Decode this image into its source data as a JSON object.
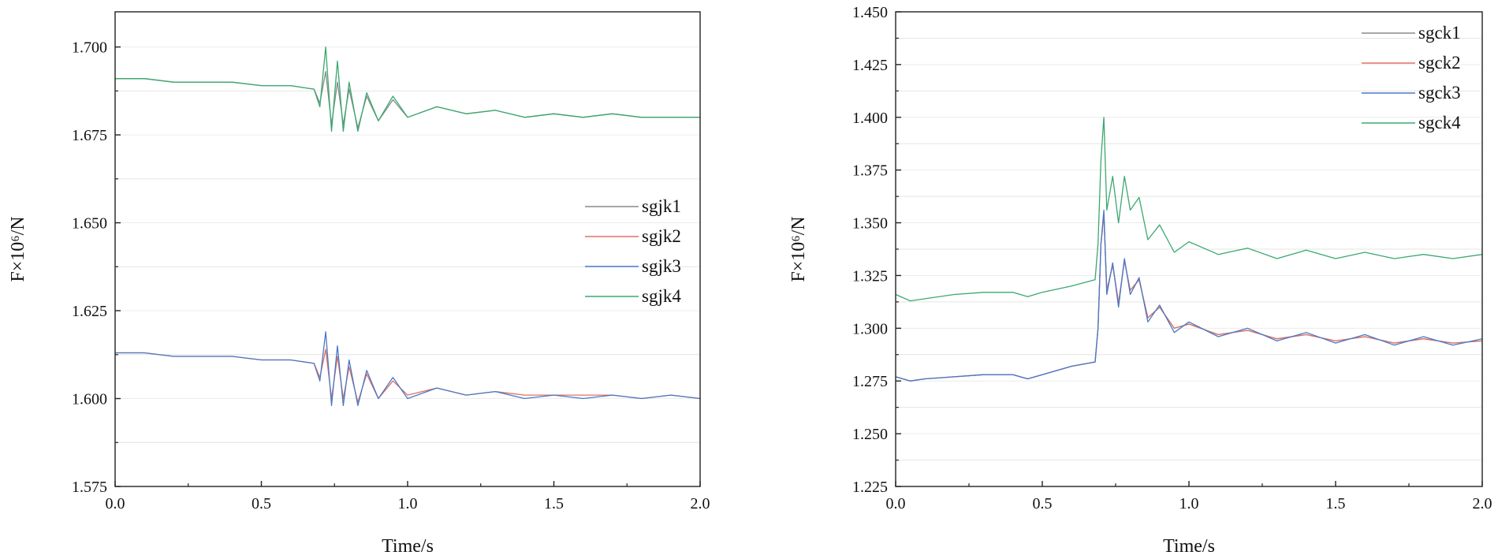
{
  "chart_data": [
    {
      "type": "line",
      "xlabel": "Time/s",
      "ylabel": "F×10⁶/N",
      "xlim": [
        0.0,
        2.0
      ],
      "ylim": [
        1.575,
        1.71
      ],
      "xticks": [
        "0.0",
        "0.5",
        "1.0",
        "1.5",
        "2.0"
      ],
      "yticks": [
        "1.575",
        "1.600",
        "1.625",
        "1.650",
        "1.675",
        "1.700"
      ],
      "grid": "horizontal, light",
      "legend_position": "center-right",
      "series": [
        {
          "name": "sgjk1",
          "color": "#8a8a8a",
          "x": [
            0.0,
            0.1,
            0.2,
            0.3,
            0.4,
            0.5,
            0.6,
            0.68,
            0.7,
            0.72,
            0.74,
            0.76,
            0.78,
            0.8,
            0.83,
            0.86,
            0.9,
            0.95,
            1.0,
            1.1,
            1.2,
            1.3,
            1.4,
            1.5,
            1.6,
            1.7,
            1.8,
            1.9,
            2.0
          ],
          "y": [
            1.691,
            1.691,
            1.69,
            1.69,
            1.69,
            1.689,
            1.689,
            1.688,
            1.684,
            1.693,
            1.678,
            1.69,
            1.678,
            1.688,
            1.677,
            1.686,
            1.679,
            1.685,
            1.68,
            1.683,
            1.681,
            1.682,
            1.68,
            1.681,
            1.68,
            1.681,
            1.68,
            1.68,
            1.68
          ]
        },
        {
          "name": "sgjk2",
          "color": "#e07060",
          "x": [
            0.0,
            0.1,
            0.2,
            0.3,
            0.4,
            0.5,
            0.6,
            0.68,
            0.7,
            0.72,
            0.74,
            0.76,
            0.78,
            0.8,
            0.83,
            0.86,
            0.9,
            0.95,
            1.0,
            1.1,
            1.2,
            1.3,
            1.4,
            1.5,
            1.6,
            1.7,
            1.8,
            1.9,
            2.0
          ],
          "y": [
            1.613,
            1.613,
            1.612,
            1.612,
            1.612,
            1.611,
            1.611,
            1.61,
            1.606,
            1.614,
            1.6,
            1.612,
            1.6,
            1.609,
            1.599,
            1.607,
            1.6,
            1.605,
            1.601,
            1.603,
            1.601,
            1.602,
            1.601,
            1.601,
            1.601,
            1.601,
            1.6,
            1.601,
            1.6
          ]
        },
        {
          "name": "sgjk3",
          "color": "#4a78c8",
          "x": [
            0.0,
            0.1,
            0.2,
            0.3,
            0.4,
            0.5,
            0.6,
            0.68,
            0.7,
            0.72,
            0.74,
            0.76,
            0.78,
            0.8,
            0.83,
            0.86,
            0.9,
            0.95,
            1.0,
            1.1,
            1.2,
            1.3,
            1.4,
            1.5,
            1.6,
            1.7,
            1.8,
            1.9,
            2.0
          ],
          "y": [
            1.613,
            1.613,
            1.612,
            1.612,
            1.612,
            1.611,
            1.611,
            1.61,
            1.605,
            1.619,
            1.598,
            1.615,
            1.598,
            1.611,
            1.598,
            1.608,
            1.6,
            1.606,
            1.6,
            1.603,
            1.601,
            1.602,
            1.6,
            1.601,
            1.6,
            1.601,
            1.6,
            1.601,
            1.6
          ]
        },
        {
          "name": "sgjk4",
          "color": "#3aa870",
          "x": [
            0.0,
            0.1,
            0.2,
            0.3,
            0.4,
            0.5,
            0.6,
            0.68,
            0.7,
            0.72,
            0.74,
            0.76,
            0.78,
            0.8,
            0.83,
            0.86,
            0.9,
            0.95,
            1.0,
            1.1,
            1.2,
            1.3,
            1.4,
            1.5,
            1.6,
            1.7,
            1.8,
            1.9,
            2.0
          ],
          "y": [
            1.691,
            1.691,
            1.69,
            1.69,
            1.69,
            1.689,
            1.689,
            1.688,
            1.683,
            1.7,
            1.676,
            1.696,
            1.676,
            1.69,
            1.676,
            1.687,
            1.679,
            1.686,
            1.68,
            1.683,
            1.681,
            1.682,
            1.68,
            1.681,
            1.68,
            1.681,
            1.68,
            1.68,
            1.68
          ]
        }
      ]
    },
    {
      "type": "line",
      "xlabel": "Time/s",
      "ylabel": "F×10⁶/N",
      "xlim": [
        0.0,
        2.0
      ],
      "ylim": [
        1.225,
        1.45
      ],
      "xticks": [
        "0.0",
        "0.5",
        "1.0",
        "1.5",
        "2.0"
      ],
      "yticks": [
        "1.225",
        "1.250",
        "1.275",
        "1.300",
        "1.325",
        "1.350",
        "1.375",
        "1.400",
        "1.425",
        "1.450"
      ],
      "grid": "horizontal, light",
      "legend_position": "top-right",
      "series": [
        {
          "name": "sgck1",
          "color": "#8a8a8a",
          "x": [
            0.0,
            0.05,
            0.1,
            0.2,
            0.3,
            0.4,
            0.45,
            0.5,
            0.6,
            0.68,
            0.69,
            0.7,
            0.71,
            0.72,
            0.74,
            0.76,
            0.78,
            0.8,
            0.83,
            0.86,
            0.9,
            0.95,
            1.0,
            1.1,
            1.2,
            1.3,
            1.4,
            1.5,
            1.6,
            1.7,
            1.8,
            1.9,
            2.0
          ],
          "y": [
            1.277,
            1.275,
            1.276,
            1.277,
            1.278,
            1.278,
            1.276,
            1.278,
            1.282,
            1.284,
            1.3,
            1.34,
            1.354,
            1.318,
            1.33,
            1.312,
            1.332,
            1.318,
            1.323,
            1.305,
            1.31,
            1.3,
            1.302,
            1.297,
            1.299,
            1.295,
            1.297,
            1.294,
            1.296,
            1.293,
            1.295,
            1.293,
            1.294
          ]
        },
        {
          "name": "sgck2",
          "color": "#e07060",
          "x": [
            0.0,
            0.05,
            0.1,
            0.2,
            0.3,
            0.4,
            0.45,
            0.5,
            0.6,
            0.68,
            0.69,
            0.7,
            0.71,
            0.72,
            0.74,
            0.76,
            0.78,
            0.8,
            0.83,
            0.86,
            0.9,
            0.95,
            1.0,
            1.1,
            1.2,
            1.3,
            1.4,
            1.5,
            1.6,
            1.7,
            1.8,
            1.9,
            2.0
          ],
          "y": [
            1.277,
            1.275,
            1.276,
            1.277,
            1.278,
            1.278,
            1.276,
            1.278,
            1.282,
            1.284,
            1.3,
            1.34,
            1.354,
            1.318,
            1.33,
            1.312,
            1.332,
            1.318,
            1.323,
            1.305,
            1.31,
            1.3,
            1.302,
            1.297,
            1.299,
            1.295,
            1.297,
            1.294,
            1.296,
            1.293,
            1.295,
            1.293,
            1.294
          ]
        },
        {
          "name": "sgck3",
          "color": "#4a78c8",
          "x": [
            0.0,
            0.05,
            0.1,
            0.2,
            0.3,
            0.4,
            0.45,
            0.5,
            0.6,
            0.68,
            0.69,
            0.7,
            0.71,
            0.72,
            0.74,
            0.76,
            0.78,
            0.8,
            0.83,
            0.86,
            0.9,
            0.95,
            1.0,
            1.1,
            1.2,
            1.3,
            1.4,
            1.5,
            1.6,
            1.7,
            1.8,
            1.9,
            2.0
          ],
          "y": [
            1.277,
            1.275,
            1.276,
            1.277,
            1.278,
            1.278,
            1.276,
            1.278,
            1.282,
            1.284,
            1.3,
            1.34,
            1.356,
            1.316,
            1.331,
            1.31,
            1.333,
            1.316,
            1.324,
            1.303,
            1.311,
            1.298,
            1.303,
            1.296,
            1.3,
            1.294,
            1.298,
            1.293,
            1.297,
            1.292,
            1.296,
            1.292,
            1.295
          ]
        },
        {
          "name": "sgck4",
          "color": "#3aa870",
          "x": [
            0.0,
            0.05,
            0.1,
            0.2,
            0.3,
            0.4,
            0.45,
            0.5,
            0.6,
            0.68,
            0.69,
            0.7,
            0.71,
            0.72,
            0.74,
            0.76,
            0.78,
            0.8,
            0.83,
            0.86,
            0.9,
            0.95,
            1.0,
            1.1,
            1.2,
            1.3,
            1.4,
            1.5,
            1.6,
            1.7,
            1.8,
            1.9,
            2.0
          ],
          "y": [
            1.316,
            1.313,
            1.314,
            1.316,
            1.317,
            1.317,
            1.315,
            1.317,
            1.32,
            1.323,
            1.34,
            1.38,
            1.4,
            1.356,
            1.372,
            1.35,
            1.372,
            1.356,
            1.362,
            1.342,
            1.349,
            1.336,
            1.341,
            1.335,
            1.338,
            1.333,
            1.337,
            1.333,
            1.336,
            1.333,
            1.335,
            1.333,
            1.335
          ]
        }
      ]
    }
  ]
}
